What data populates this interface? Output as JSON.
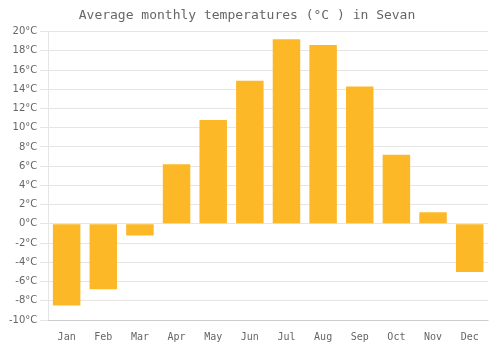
{
  "chart_data": {
    "type": "bar",
    "title": "Average monthly temperatures (°C ) in Sevan",
    "categories": [
      "Jan",
      "Feb",
      "Mar",
      "Apr",
      "May",
      "Jun",
      "Jul",
      "Aug",
      "Sep",
      "Oct",
      "Nov",
      "Dec"
    ],
    "values": [
      -8.5,
      -6.8,
      -1.2,
      6.2,
      10.8,
      14.9,
      19.2,
      18.6,
      14.3,
      7.2,
      1.2,
      -5.0
    ],
    "color": "#FDB827",
    "ylim": [
      -10,
      20
    ],
    "yticks": [
      {
        "value": -10,
        "label": "-10°C"
      },
      {
        "value": -8,
        "label": "-8°C"
      },
      {
        "value": -6,
        "label": "-6°C"
      },
      {
        "value": -4,
        "label": "-4°C"
      },
      {
        "value": -2,
        "label": "-2°C"
      },
      {
        "value": 0,
        "label": "0°C"
      },
      {
        "value": 2,
        "label": "2°C"
      },
      {
        "value": 4,
        "label": "4°C"
      },
      {
        "value": 6,
        "label": "6°C"
      },
      {
        "value": 8,
        "label": "8°C"
      },
      {
        "value": 10,
        "label": "10°C"
      },
      {
        "value": 12,
        "label": "12°C"
      },
      {
        "value": 14,
        "label": "14°C"
      },
      {
        "value": 16,
        "label": "16°C"
      },
      {
        "value": 18,
        "label": "18°C"
      },
      {
        "value": 20,
        "label": "20°C"
      }
    ],
    "grid": true
  }
}
